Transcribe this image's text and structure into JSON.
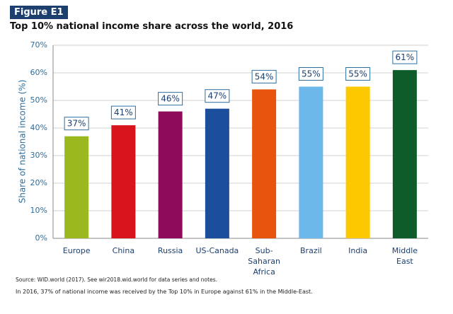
{
  "figure_label": "Figure E1",
  "source": "Source: WID.world (2017). See wir2018.wid.world for data series and notes.",
  "note": "In 2016, 37% of national income was received by the Top 10% in Europe against 61% in the Middle-East.",
  "chart_data": {
    "type": "bar",
    "title": "Top 10% national income share across the world, 2016",
    "y_label": "Share of national income (%)",
    "categories": [
      "Europe",
      "China",
      "Russia",
      "US-Canada",
      "Sub-Saharan Africa",
      "Brazil",
      "India",
      "Middle East"
    ],
    "values": [
      37,
      41,
      46,
      47,
      54,
      55,
      55,
      61
    ],
    "value_labels": [
      "37%",
      "41%",
      "46%",
      "47%",
      "54%",
      "55%",
      "55%",
      "61%"
    ],
    "colors": [
      "#9ab91e",
      "#d8141c",
      "#8e0b5b",
      "#1b4f9c",
      "#e8530e",
      "#6cb8ea",
      "#fcc900",
      "#0f5c2b"
    ],
    "ylim": [
      0,
      70
    ],
    "yticks": [
      {
        "value": 0,
        "label": "0%"
      },
      {
        "value": 10,
        "label": "10%"
      },
      {
        "value": 20,
        "label": "20%"
      },
      {
        "value": 30,
        "label": "30%"
      },
      {
        "value": 40,
        "label": "40%"
      },
      {
        "value": 50,
        "label": "50%"
      },
      {
        "value": 60,
        "label": "60%"
      },
      {
        "value": 70,
        "label": "70%"
      }
    ],
    "grid": true
  }
}
